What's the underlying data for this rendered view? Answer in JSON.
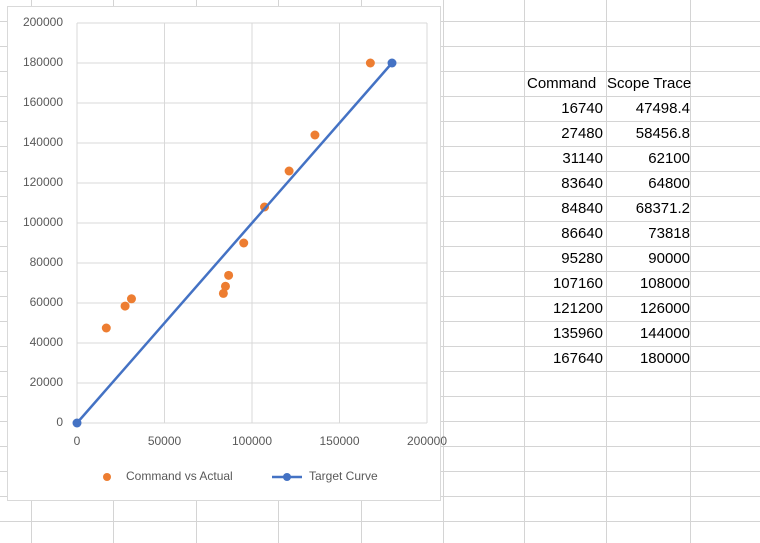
{
  "chart_data": {
    "type": "scatter",
    "series": [
      {
        "name": "Command vs Actual",
        "color": "#ED7D31",
        "style": "markers",
        "x": [
          16740,
          27480,
          31140,
          83640,
          84840,
          86640,
          95280,
          107160,
          121200,
          135960,
          167640
        ],
        "values": [
          47498.4,
          58456.8,
          62100,
          64800,
          68371.2,
          73818,
          90000,
          108000,
          126000,
          144000,
          180000
        ]
      },
      {
        "name": "Target Curve",
        "color": "#4472C4",
        "style": "line-markers",
        "x": [
          0,
          180000
        ],
        "values": [
          0,
          180000
        ]
      }
    ],
    "xlim": [
      0,
      200000
    ],
    "xticks": [
      0,
      50000,
      100000,
      150000,
      200000
    ],
    "ylim": [
      0,
      200000
    ],
    "yticks": [
      0,
      20000,
      40000,
      60000,
      80000,
      100000,
      120000,
      140000,
      160000,
      180000,
      200000
    ],
    "grid": true,
    "legend": "bottom"
  },
  "table": {
    "header": [
      "Command",
      "Scope Trace"
    ],
    "rows": [
      [
        16740,
        47498.4
      ],
      [
        27480,
        58456.8
      ],
      [
        31140,
        62100
      ],
      [
        83640,
        64800
      ],
      [
        84840,
        68371.2
      ],
      [
        86640,
        73818
      ],
      [
        95280,
        90000
      ],
      [
        107160,
        108000
      ],
      [
        121200,
        126000
      ],
      [
        135960,
        144000
      ],
      [
        167640,
        180000
      ]
    ]
  }
}
